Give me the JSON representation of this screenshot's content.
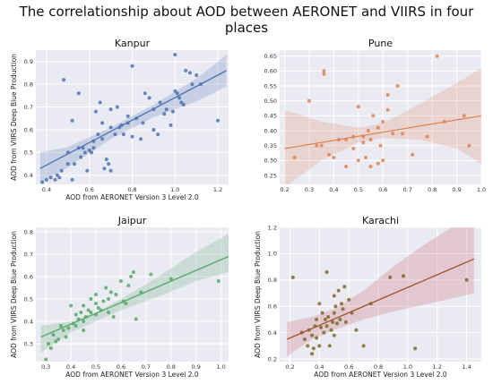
{
  "title": "The correlationship about AOD between AERONET and VIIRS in four places",
  "chart_data": [
    {
      "type": "scatter",
      "title": "Kanpur",
      "xlabel": "AOD from AERONET Version 3 Level 2.0",
      "ylabel": "AOD from VIIRS Deep Blue Production",
      "xlim": [
        0.35,
        1.25
      ],
      "ylim": [
        0.36,
        0.95
      ],
      "xticks": [
        "0.4",
        "0.6",
        "0.8",
        "1.0",
        "1.2"
      ],
      "xtick_values": [
        0.4,
        0.6,
        0.8,
        1.0,
        1.2
      ],
      "yticks": [
        "0.4",
        "0.5",
        "0.6",
        "0.7",
        "0.8",
        "0.9"
      ],
      "ytick_values": [
        0.4,
        0.5,
        0.6,
        0.7,
        0.8,
        0.9
      ],
      "color": "#4c72b0",
      "fit": {
        "x": [
          0.37,
          1.24
        ],
        "y": [
          0.43,
          0.86
        ]
      },
      "band": {
        "x": [
          0.37,
          0.5,
          0.7,
          0.9,
          1.1,
          1.24
        ],
        "upper": [
          0.5,
          0.525,
          0.61,
          0.71,
          0.825,
          0.93
        ],
        "lower": [
          0.365,
          0.435,
          0.56,
          0.655,
          0.725,
          0.79
        ]
      },
      "x": [
        0.38,
        0.4,
        0.42,
        0.44,
        0.45,
        0.46,
        0.47,
        0.48,
        0.5,
        0.52,
        0.53,
        0.55,
        0.56,
        0.57,
        0.58,
        0.59,
        0.6,
        0.61,
        0.62,
        0.63,
        0.65,
        0.66,
        0.67,
        0.68,
        0.69,
        0.7,
        0.7,
        0.72,
        0.74,
        0.75,
        0.76,
        0.78,
        0.8,
        0.8,
        0.82,
        0.84,
        0.85,
        0.86,
        0.88,
        0.9,
        0.9,
        0.92,
        0.93,
        0.95,
        0.96,
        0.98,
        0.99,
        1.0,
        1.0,
        1.01,
        1.02,
        1.03,
        1.04,
        1.05,
        1.07,
        1.08,
        1.1,
        1.12,
        1.2,
        0.5,
        0.52,
        0.66,
        0.62,
        0.55,
        0.7,
        0.73,
        0.64,
        0.78
      ],
      "y": [
        0.37,
        0.38,
        0.39,
        0.38,
        0.4,
        0.39,
        0.42,
        0.82,
        0.5,
        0.64,
        0.45,
        0.76,
        0.48,
        0.52,
        0.5,
        0.42,
        0.51,
        0.5,
        0.52,
        0.68,
        0.72,
        0.63,
        0.43,
        0.47,
        0.45,
        0.69,
        0.42,
        0.58,
        0.61,
        0.62,
        0.58,
        0.63,
        0.88,
        0.57,
        0.65,
        0.56,
        0.63,
        0.76,
        0.74,
        0.69,
        0.6,
        0.58,
        0.72,
        0.67,
        0.69,
        0.62,
        0.68,
        0.93,
        0.77,
        0.76,
        0.74,
        0.72,
        0.71,
        0.86,
        0.85,
        0.8,
        0.84,
        0.8,
        0.64,
        0.45,
        0.38,
        0.56,
        0.55,
        0.52,
        0.61,
        0.7,
        0.58,
        0.66
      ]
    },
    {
      "type": "scatter",
      "title": "Pune",
      "xlabel": "",
      "ylabel": "",
      "xlim": [
        0.18,
        1.0
      ],
      "ylim": [
        0.22,
        0.67
      ],
      "xticks": [
        "0.2",
        "0.3",
        "0.4",
        "0.5",
        "0.6",
        "0.7",
        "0.8",
        "0.9",
        "1.0"
      ],
      "xtick_values": [
        0.2,
        0.3,
        0.4,
        0.5,
        0.6,
        0.7,
        0.8,
        0.9,
        1.0
      ],
      "yticks": [
        "0.25",
        "0.30",
        "0.35",
        "0.40",
        "0.45",
        "0.50",
        "0.55",
        "0.60",
        "0.65"
      ],
      "ytick_values": [
        0.25,
        0.3,
        0.35,
        0.4,
        0.45,
        0.5,
        0.55,
        0.6,
        0.65
      ],
      "color": "#dd8452",
      "fit": {
        "x": [
          0.2,
          1.0
        ],
        "y": [
          0.34,
          0.45
        ]
      },
      "band": {
        "x": [
          0.2,
          0.35,
          0.5,
          0.6,
          0.75,
          0.9,
          1.0
        ],
        "upper": [
          0.47,
          0.43,
          0.41,
          0.425,
          0.49,
          0.56,
          0.61
        ],
        "lower": [
          0.21,
          0.3,
          0.36,
          0.375,
          0.37,
          0.34,
          0.29
        ]
      },
      "x": [
        0.24,
        0.3,
        0.33,
        0.35,
        0.36,
        0.38,
        0.4,
        0.42,
        0.45,
        0.45,
        0.48,
        0.5,
        0.5,
        0.52,
        0.52,
        0.53,
        0.54,
        0.55,
        0.55,
        0.56,
        0.58,
        0.58,
        0.59,
        0.6,
        0.6,
        0.62,
        0.62,
        0.64,
        0.66,
        0.68,
        0.72,
        0.78,
        0.82,
        0.85,
        0.93,
        0.95,
        0.36,
        0.48
      ],
      "y": [
        0.31,
        0.5,
        0.35,
        0.35,
        0.6,
        0.32,
        0.31,
        0.37,
        0.37,
        0.28,
        0.38,
        0.48,
        0.3,
        0.36,
        0.38,
        0.31,
        0.4,
        0.28,
        0.37,
        0.45,
        0.29,
        0.41,
        0.35,
        0.43,
        0.3,
        0.52,
        0.47,
        0.39,
        0.55,
        0.39,
        0.32,
        0.38,
        0.65,
        0.43,
        0.45,
        0.35,
        0.59,
        0.34
      ]
    },
    {
      "type": "scatter",
      "title": "Jaipur",
      "xlabel": "AOD from AERONET Version 3 Level 2.0",
      "ylabel": "AOD from VIIRS Deep Blue Production",
      "xlim": [
        0.26,
        1.03
      ],
      "ylim": [
        0.22,
        0.82
      ],
      "xticks": [
        "0.3",
        "0.4",
        "0.5",
        "0.6",
        "0.7",
        "0.8",
        "0.9",
        "1.0"
      ],
      "xtick_values": [
        0.3,
        0.4,
        0.5,
        0.6,
        0.7,
        0.8,
        0.9,
        1.0
      ],
      "yticks": [
        "0.3",
        "0.4",
        "0.5",
        "0.6",
        "0.7",
        "0.8"
      ],
      "ytick_values": [
        0.3,
        0.4,
        0.5,
        0.6,
        0.7,
        0.8
      ],
      "color": "#55a868",
      "fit": {
        "x": [
          0.28,
          1.03
        ],
        "y": [
          0.33,
          0.69
        ]
      },
      "band": {
        "x": [
          0.28,
          0.4,
          0.5,
          0.6,
          0.75,
          0.9,
          1.03
        ],
        "upper": [
          0.38,
          0.4,
          0.44,
          0.5,
          0.6,
          0.71,
          0.79
        ],
        "lower": [
          0.26,
          0.35,
          0.4,
          0.45,
          0.51,
          0.58,
          0.62
        ]
      },
      "x": [
        0.3,
        0.31,
        0.32,
        0.33,
        0.34,
        0.35,
        0.36,
        0.37,
        0.38,
        0.39,
        0.4,
        0.41,
        0.42,
        0.42,
        0.43,
        0.44,
        0.45,
        0.45,
        0.46,
        0.47,
        0.48,
        0.48,
        0.5,
        0.5,
        0.51,
        0.52,
        0.53,
        0.54,
        0.55,
        0.55,
        0.56,
        0.57,
        0.58,
        0.6,
        0.61,
        0.62,
        0.63,
        0.64,
        0.65,
        0.66,
        0.68,
        0.72,
        0.8,
        0.99,
        0.45,
        0.5
      ],
      "y": [
        0.23,
        0.3,
        0.28,
        0.34,
        0.31,
        0.32,
        0.38,
        0.36,
        0.33,
        0.37,
        0.47,
        0.39,
        0.43,
        0.38,
        0.41,
        0.44,
        0.4,
        0.47,
        0.42,
        0.45,
        0.5,
        0.44,
        0.48,
        0.43,
        0.46,
        0.45,
        0.49,
        0.55,
        0.5,
        0.44,
        0.53,
        0.42,
        0.52,
        0.58,
        0.49,
        0.48,
        0.56,
        0.6,
        0.62,
        0.41,
        0.53,
        0.61,
        0.59,
        0.58,
        0.36,
        0.52
      ]
    },
    {
      "type": "scatter",
      "title": "Karachi",
      "xlabel": "AOD from AERONET Version 3 Level 2.0",
      "ylabel": "AOD from VIIRS Deep Blue Production",
      "xlim": [
        0.13,
        1.5
      ],
      "ylim": [
        0.18,
        1.2
      ],
      "xticks": [
        "0.2",
        "0.4",
        "0.6",
        "0.8",
        "1.0",
        "1.2",
        "1.4"
      ],
      "xtick_values": [
        0.2,
        0.4,
        0.6,
        0.8,
        1.0,
        1.2,
        1.4
      ],
      "yticks": [
        "0.2",
        "0.4",
        "0.6",
        "0.8",
        "1.0",
        "1.2"
      ],
      "ytick_values": [
        0.2,
        0.4,
        0.6,
        0.8,
        1.0,
        1.2
      ],
      "color": "#c44e52",
      "point_color": "#7a6a2a",
      "line_color": "#a0522d",
      "fit": {
        "x": [
          0.18,
          1.45
        ],
        "y": [
          0.35,
          0.96
        ]
      },
      "band": {
        "x": [
          0.18,
          0.35,
          0.5,
          0.7,
          0.9,
          1.1,
          1.3,
          1.45
        ],
        "upper": [
          0.48,
          0.52,
          0.58,
          0.72,
          0.9,
          1.06,
          1.2,
          1.2
        ],
        "lower": [
          0.22,
          0.35,
          0.42,
          0.5,
          0.56,
          0.61,
          0.66,
          0.7
        ]
      },
      "x": [
        0.22,
        0.28,
        0.3,
        0.32,
        0.33,
        0.35,
        0.36,
        0.37,
        0.38,
        0.38,
        0.4,
        0.41,
        0.42,
        0.43,
        0.44,
        0.45,
        0.45,
        0.46,
        0.47,
        0.48,
        0.49,
        0.5,
        0.5,
        0.51,
        0.52,
        0.53,
        0.54,
        0.55,
        0.56,
        0.57,
        0.58,
        0.6,
        0.62,
        0.65,
        0.7,
        0.75,
        0.88,
        0.97,
        1.05,
        1.4,
        0.4,
        0.5,
        0.35
      ],
      "y": [
        0.82,
        0.4,
        0.35,
        0.3,
        0.42,
        0.38,
        0.28,
        0.45,
        0.5,
        0.36,
        0.62,
        0.44,
        0.55,
        0.4,
        0.5,
        0.86,
        0.45,
        0.52,
        0.3,
        0.42,
        0.48,
        0.55,
        0.68,
        0.6,
        0.47,
        0.72,
        0.5,
        0.62,
        0.58,
        0.75,
        0.48,
        0.65,
        0.55,
        0.42,
        0.3,
        0.62,
        0.82,
        0.83,
        0.28,
        0.8,
        0.3,
        0.38,
        0.24
      ]
    }
  ]
}
